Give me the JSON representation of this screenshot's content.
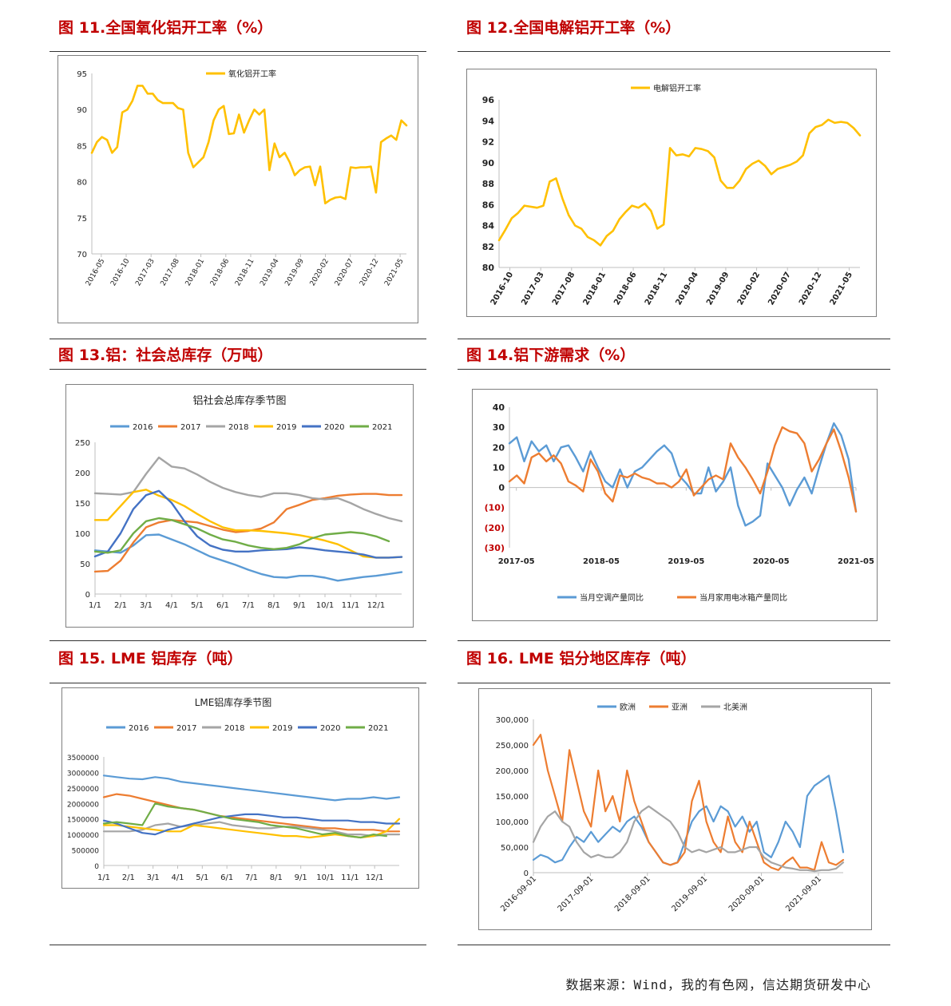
{
  "headings": {
    "fig11": "图 11.全国氧化铝开工率（%）",
    "fig12": "图 12.全国电解铝开工率（%）",
    "fig13": "图 13.铝：社会总库存（万吨）",
    "fig14": "图 14.铝下游需求（%）",
    "fig15": "图 15.  LME 铝库存（吨）",
    "fig16": "图 16.  LME 铝分地区库存（吨）"
  },
  "source": "数据来源：Wind，我的有色网，信达期货研发中心",
  "colors": {
    "yellow": "#FFC000",
    "blue": "#5B9BD5",
    "orange": "#ED7D31",
    "gray": "#A5A5A5",
    "darkblue": "#4472C4",
    "green": "#70AD47",
    "red": "#C00000"
  },
  "chart_data": [
    {
      "id": "fig11",
      "type": "line",
      "title": "",
      "legend": [
        "氧化铝开工率"
      ],
      "ylim": [
        70,
        95
      ],
      "yticks": [
        "95",
        "90",
        "85",
        "80",
        "75",
        "70"
      ],
      "xticks": [
        "2016-05",
        "2016-10",
        "2017-03",
        "2017-08",
        "2018-01",
        "2018-06",
        "2018-11",
        "2019-04",
        "2019-09",
        "2020-02",
        "2020-07",
        "2020-12",
        "2021-05"
      ],
      "series": [
        {
          "name": "氧化铝开工率",
          "values": [
            84,
            85.5,
            86.2,
            85.8,
            84,
            84.8,
            89.6,
            90,
            91.2,
            93.3,
            93.3,
            92.2,
            92.2,
            91.3,
            90.9,
            90.9,
            90.9,
            90.2,
            90,
            84,
            82,
            82.7,
            83.4,
            85.5,
            88.5,
            90,
            90.5,
            86.6,
            86.7,
            89.3,
            86.8,
            88.5,
            90,
            89.3,
            90,
            81.6,
            85.3,
            83.4,
            84,
            82.7,
            80.9,
            81.6,
            82,
            82.1,
            79.5,
            82.1,
            77,
            77.5,
            77.8,
            77.9,
            77.6,
            82,
            81.9,
            82,
            82,
            82.1,
            78.5,
            85.5,
            86,
            86.4,
            85.8,
            88.5,
            87.8
          ]
        }
      ]
    },
    {
      "id": "fig12",
      "type": "line",
      "title": "",
      "legend": [
        "电解铝开工率"
      ],
      "ylim": [
        80,
        96
      ],
      "yticks": [
        "96",
        "94",
        "92",
        "90",
        "88",
        "86",
        "84",
        "82",
        "80"
      ],
      "xticks": [
        "2016-10",
        "2017-03",
        "2017-08",
        "2018-01",
        "2018-06",
        "2018-11",
        "2019-04",
        "2019-09",
        "2020-02",
        "2020-07",
        "2020-12",
        "2021-05"
      ],
      "series": [
        {
          "name": "电解铝开工率",
          "values": [
            82.6,
            83.6,
            84.7,
            85.2,
            85.9,
            85.8,
            85.7,
            85.9,
            88.2,
            88.5,
            86.6,
            85,
            84,
            83.7,
            82.9,
            82.6,
            82.1,
            83,
            83.5,
            84.6,
            85.3,
            85.9,
            85.7,
            86.1,
            85.4,
            83.7,
            84.1,
            91.4,
            90.7,
            90.8,
            90.6,
            91.4,
            91.3,
            91.1,
            90.5,
            88.3,
            87.6,
            87.6,
            88.3,
            89.4,
            89.9,
            90.2,
            89.7,
            88.9,
            89.4,
            89.6,
            89.8,
            90.1,
            90.7,
            92.8,
            93.4,
            93.6,
            94.1,
            93.8,
            93.9,
            93.8,
            93.3,
            92.6
          ]
        }
      ]
    },
    {
      "id": "fig13",
      "type": "line",
      "title": "铝社会总库存季节图",
      "legend": [
        "2016",
        "2017",
        "2018",
        "2019",
        "2020",
        "2021"
      ],
      "ylim": [
        0,
        250
      ],
      "yticks": [
        "250",
        "200",
        "150",
        "100",
        "50",
        "0"
      ],
      "xticks": [
        "1/1",
        "2/1",
        "3/1",
        "4/1",
        "5/1",
        "6/1",
        "7/1",
        "8/1",
        "9/1",
        "10/1",
        "11/1",
        "12/1"
      ],
      "series": [
        {
          "name": "2016",
          "values": [
            72,
            70,
            68,
            80,
            97,
            98,
            90,
            82,
            72,
            62,
            55,
            48,
            40,
            33,
            28,
            27,
            30,
            30,
            27,
            22,
            25,
            28,
            30,
            33,
            36
          ]
        },
        {
          "name": "2017",
          "values": [
            37,
            38,
            55,
            85,
            110,
            118,
            122,
            120,
            118,
            112,
            106,
            102,
            104,
            108,
            118,
            140,
            147,
            155,
            158,
            162,
            164,
            165,
            165,
            163,
            163
          ]
        },
        {
          "name": "2018",
          "values": [
            166,
            165,
            164,
            168,
            198,
            225,
            210,
            207,
            197,
            185,
            175,
            168,
            163,
            160,
            166,
            166,
            163,
            158,
            156,
            158,
            150,
            140,
            132,
            125,
            120
          ]
        },
        {
          "name": "2019",
          "values": [
            122,
            122,
            145,
            168,
            172,
            162,
            155,
            145,
            132,
            120,
            110,
            105,
            105,
            104,
            102,
            100,
            97,
            93,
            88,
            82,
            72,
            62,
            60,
            60,
            61
          ]
        },
        {
          "name": "2020",
          "values": [
            62,
            70,
            100,
            140,
            163,
            170,
            150,
            120,
            95,
            80,
            73,
            70,
            70,
            72,
            73,
            74,
            77,
            75,
            72,
            70,
            68,
            65,
            60,
            60,
            61
          ]
        },
        {
          "name": "2021",
          "values": [
            70,
            68,
            72,
            100,
            120,
            125,
            122,
            115,
            108,
            98,
            90,
            86,
            80,
            76,
            74,
            76,
            82,
            92,
            98,
            100,
            102,
            100,
            95,
            87,
            null
          ]
        }
      ]
    },
    {
      "id": "fig14",
      "type": "line",
      "title": "",
      "legend": [
        "当月空调产量同比",
        "当月家用电冰箱产量同比"
      ],
      "ylim": [
        -30,
        40
      ],
      "yticks": [
        "40",
        "30",
        "20",
        "10",
        "0",
        "(10)",
        "(20)",
        "(30)"
      ],
      "xticks": [
        "2017-05",
        "2018-05",
        "2019-05",
        "2020-05",
        "2021-05"
      ],
      "series": [
        {
          "name": "当月空调产量同比",
          "values": [
            22,
            25,
            13,
            23,
            18,
            21,
            13,
            20,
            21,
            15,
            8,
            18,
            10,
            3,
            0,
            9,
            0,
            8,
            10,
            14,
            18,
            21,
            17,
            6,
            2,
            -3,
            -3,
            10,
            -2,
            3,
            10,
            -9,
            -19,
            -17,
            -14,
            12,
            6,
            0,
            -9,
            -1,
            5,
            -3,
            10,
            22,
            32,
            26,
            14,
            -12
          ]
        },
        {
          "name": "当月家用电冰箱产量同比",
          "values": [
            3,
            6,
            2,
            15,
            17,
            13,
            16,
            12,
            3,
            1,
            -2,
            14,
            8,
            -3,
            -7,
            6,
            5,
            7,
            5,
            4,
            2,
            2,
            0,
            3,
            9,
            -4,
            0,
            4,
            6,
            4,
            22,
            15,
            10,
            4,
            -3,
            8,
            21,
            30,
            28,
            27,
            22,
            8,
            14,
            22,
            29,
            18,
            5,
            -12
          ]
        }
      ]
    },
    {
      "id": "fig15",
      "type": "line",
      "title": "LME铝库存季节图",
      "legend": [
        "2016",
        "2017",
        "2018",
        "2019",
        "2020",
        "2021"
      ],
      "ylim": [
        0,
        3500000
      ],
      "yticks": [
        "3500000",
        "3000000",
        "2500000",
        "2000000",
        "1500000",
        "1000000",
        "500000",
        "0"
      ],
      "xticks": [
        "1/1",
        "2/1",
        "3/1",
        "4/1",
        "5/1",
        "6/1",
        "7/1",
        "8/1",
        "9/1",
        "10/1",
        "11/1",
        "12/1"
      ],
      "series": [
        {
          "name": "2016",
          "values": [
            2900000,
            2850000,
            2800000,
            2780000,
            2850000,
            2800000,
            2700000,
            2650000,
            2600000,
            2550000,
            2500000,
            2450000,
            2400000,
            2350000,
            2300000,
            2250000,
            2200000,
            2150000,
            2100000,
            2150000,
            2150000,
            2200000,
            2150000,
            2200000
          ]
        },
        {
          "name": "2017",
          "values": [
            2200000,
            2300000,
            2250000,
            2150000,
            2050000,
            1950000,
            1850000,
            1800000,
            1700000,
            1600000,
            1550000,
            1500000,
            1450000,
            1400000,
            1350000,
            1300000,
            1250000,
            1200000,
            1200000,
            1150000,
            1150000,
            1150000,
            1100000,
            1100000
          ]
        },
        {
          "name": "2018",
          "values": [
            1100000,
            1100000,
            1100000,
            1150000,
            1300000,
            1350000,
            1250000,
            1300000,
            1350000,
            1400000,
            1300000,
            1250000,
            1200000,
            1200000,
            1250000,
            1250000,
            1200000,
            1150000,
            1100000,
            1000000,
            1000000,
            950000,
            1000000,
            1000000
          ]
        },
        {
          "name": "2019",
          "values": [
            1300000,
            1300000,
            1250000,
            1200000,
            1150000,
            1100000,
            1100000,
            1300000,
            1250000,
            1200000,
            1150000,
            1100000,
            1050000,
            1000000,
            950000,
            950000,
            900000,
            950000,
            1000000,
            950000,
            900000,
            950000,
            1100000,
            1500000
          ]
        },
        {
          "name": "2020",
          "values": [
            1450000,
            1350000,
            1200000,
            1050000,
            1000000,
            1150000,
            1250000,
            1350000,
            1450000,
            1550000,
            1600000,
            1650000,
            1650000,
            1600000,
            1550000,
            1550000,
            1500000,
            1450000,
            1450000,
            1450000,
            1400000,
            1400000,
            1350000,
            1350000
          ]
        },
        {
          "name": "2021",
          "values": [
            1350000,
            1400000,
            1350000,
            1300000,
            2000000,
            1900000,
            1850000,
            1800000,
            1700000,
            1600000,
            1500000,
            1450000,
            1400000,
            1300000,
            1250000,
            1200000,
            1100000,
            1000000,
            1050000,
            950000,
            900000,
            1000000,
            950000,
            null
          ]
        }
      ]
    },
    {
      "id": "fig16",
      "type": "line",
      "title": "",
      "legend": [
        "欧洲",
        "亚洲",
        "北美洲"
      ],
      "ylim": [
        0,
        300000
      ],
      "yticks": [
        "300,000",
        "250,000",
        "200,000",
        "150,000",
        "100,000",
        "50,000",
        "0"
      ],
      "xticks": [
        "2016-09-01",
        "2017-09-01",
        "2018-09-01",
        "2019-09-01",
        "2020-09-01",
        "2021-09-01"
      ],
      "series": [
        {
          "name": "欧洲",
          "values": [
            25000,
            35000,
            30000,
            20000,
            25000,
            50000,
            70000,
            60000,
            80000,
            60000,
            75000,
            90000,
            80000,
            100000,
            110000,
            90000,
            60000,
            40000,
            20000,
            15000,
            20000,
            60000,
            100000,
            120000,
            130000,
            100000,
            130000,
            120000,
            90000,
            110000,
            80000,
            100000,
            40000,
            30000,
            60000,
            100000,
            80000,
            50000,
            150000,
            170000,
            180000,
            190000,
            120000,
            40000
          ]
        },
        {
          "name": "亚洲",
          "values": [
            250000,
            270000,
            200000,
            150000,
            100000,
            240000,
            180000,
            120000,
            90000,
            200000,
            120000,
            150000,
            100000,
            200000,
            140000,
            100000,
            60000,
            40000,
            20000,
            15000,
            20000,
            40000,
            140000,
            180000,
            100000,
            60000,
            40000,
            110000,
            60000,
            40000,
            100000,
            60000,
            20000,
            10000,
            5000,
            20000,
            30000,
            10000,
            10000,
            5000,
            60000,
            20000,
            15000,
            25000
          ]
        },
        {
          "name": "北美洲",
          "values": [
            60000,
            90000,
            110000,
            120000,
            100000,
            90000,
            60000,
            40000,
            30000,
            35000,
            30000,
            30000,
            40000,
            60000,
            100000,
            120000,
            130000,
            120000,
            110000,
            100000,
            80000,
            50000,
            40000,
            45000,
            40000,
            45000,
            50000,
            40000,
            40000,
            45000,
            50000,
            50000,
            30000,
            20000,
            15000,
            10000,
            8000,
            5000,
            5000,
            3000,
            5000,
            5000,
            8000,
            20000
          ]
        }
      ]
    }
  ]
}
